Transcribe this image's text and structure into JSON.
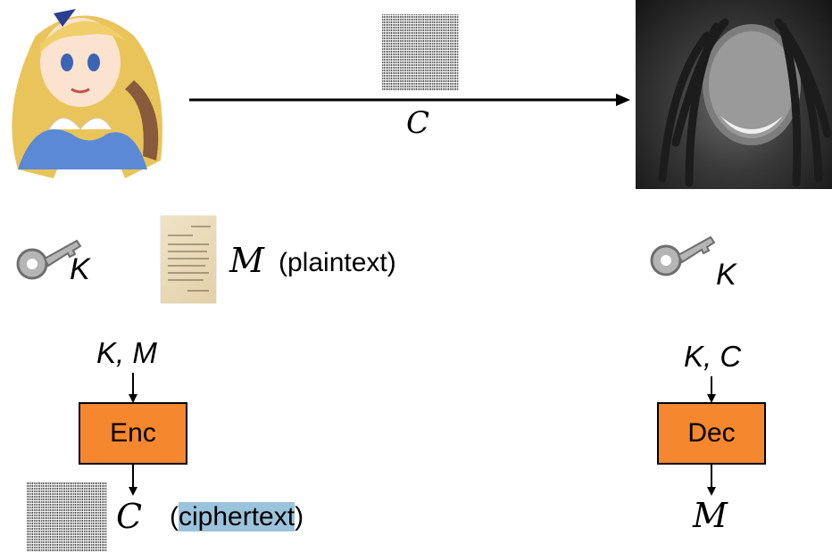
{
  "channel": {
    "label": "C"
  },
  "alice": {
    "key_label": "K"
  },
  "bob": {
    "key_label": "K"
  },
  "plaintext": {
    "symbol": "M",
    "note_open": "(",
    "note_word": "plaintext",
    "note_close": ")"
  },
  "encryption": {
    "inputs": "K, M",
    "box_label": "Enc",
    "output": "C",
    "note_open": "(",
    "note_word": "ciphertext",
    "note_close": ")"
  },
  "decryption": {
    "inputs": "K, C",
    "box_label": "Dec",
    "output": "M"
  },
  "colors": {
    "box_fill": "#f5872f",
    "highlight": "#9cc3dc"
  }
}
